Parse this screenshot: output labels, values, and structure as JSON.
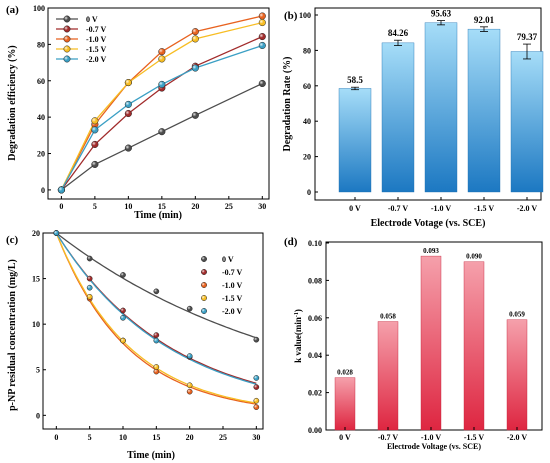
{
  "chart_data": [
    {
      "type": "line",
      "panel_label": "(a)",
      "xlabel": "Time (min)",
      "ylabel": "Degradation efficiency (%)",
      "x": [
        0,
        5,
        10,
        15,
        20,
        30
      ],
      "xticks": [
        0,
        5,
        10,
        15,
        20,
        25,
        30
      ],
      "yticks": [
        0,
        20,
        40,
        60,
        80,
        100
      ],
      "xlim": [
        -2,
        31
      ],
      "ylim": [
        -5,
        100
      ],
      "legend_position": "top-left",
      "series": [
        {
          "name": "0 V",
          "color": "#4d4d4d",
          "values": [
            0,
            14,
            23,
            32,
            41,
            58.5
          ]
        },
        {
          "name": "-0.7 V",
          "color": "#a12b2b",
          "values": [
            0,
            25,
            42,
            56,
            68,
            84.3
          ]
        },
        {
          "name": "-1.0 V",
          "color": "#e8621f",
          "values": [
            0,
            36,
            59,
            76,
            87,
            95.6
          ]
        },
        {
          "name": "-1.5 V",
          "color": "#f7bd23",
          "values": [
            0,
            38,
            59,
            72,
            83,
            92.0
          ]
        },
        {
          "name": "-2.0 V",
          "color": "#3a9fc4",
          "values": [
            0,
            33,
            47,
            58,
            67,
            79.4
          ]
        }
      ]
    },
    {
      "type": "bar",
      "panel_label": "(b)",
      "xlabel": "Electrode Votage (vs. SCE)",
      "ylabel": "Degradation Rate (%)",
      "categories": [
        "0 V",
        "-0.7 V",
        "-1.0 V",
        "-1.5 V",
        "-2.0 V"
      ],
      "values": [
        58.5,
        84.26,
        95.63,
        92.01,
        79.37
      ],
      "labels": [
        "58.5",
        "84.26",
        "95.63",
        "92.01",
        "79.37"
      ],
      "errors": [
        0.7,
        1.5,
        1.2,
        1.3,
        4.2
      ],
      "yticks": [
        0,
        20,
        40,
        60,
        80,
        100
      ],
      "ylim": [
        0,
        100
      ],
      "bar_colors": [
        "#9fd9f6",
        "#1f7fc6"
      ]
    },
    {
      "type": "scatter",
      "panel_label": "(c)",
      "xlabel": "Time (min)",
      "ylabel": "p-NP residual concentration (mg/L)",
      "x": [
        0,
        5,
        10,
        15,
        20,
        30
      ],
      "xticks": [
        0,
        5,
        10,
        15,
        20,
        25,
        30
      ],
      "yticks": [
        0,
        5,
        10,
        15,
        20
      ],
      "xlim": [
        -2,
        31
      ],
      "ylim": [
        -1.5,
        20
      ],
      "legend_position": "top-right",
      "series": [
        {
          "name": "0 V",
          "color": "#4d4d4d",
          "values": [
            20,
            17.2,
            15.4,
            13.6,
            11.7,
            8.3
          ],
          "fit_k": 0.0285
        },
        {
          "name": "-0.7 V",
          "color": "#a12b2b",
          "values": [
            20,
            15.0,
            11.5,
            8.8,
            6.4,
            3.1
          ],
          "fit_k": 0.058
        },
        {
          "name": "-1.0 V",
          "color": "#e8621f",
          "values": [
            20,
            12.8,
            8.2,
            4.8,
            2.6,
            0.9
          ],
          "fit_k": 0.093
        },
        {
          "name": "-1.5 V",
          "color": "#f7bd23",
          "values": [
            20,
            13.0,
            8.2,
            5.3,
            3.3,
            1.6
          ],
          "fit_k": 0.09
        },
        {
          "name": "-2.0 V",
          "color": "#3a9fc4",
          "values": [
            20,
            14.0,
            10.7,
            8.2,
            6.5,
            4.1
          ],
          "fit_k": 0.059
        }
      ]
    },
    {
      "type": "bar",
      "panel_label": "(d)",
      "xlabel": "Electrode Voltage (vs. SCE)",
      "ylabel": "k value(min",
      "ylabel_superscript": "-1",
      "ylabel_suffix": ")",
      "categories": [
        "0 V",
        "-0.7 V",
        "-1.0 V",
        "-1.5 V",
        "-2.0 V"
      ],
      "values": [
        0.028,
        0.058,
        0.093,
        0.09,
        0.059
      ],
      "labels": [
        "0.028",
        "0.058",
        "0.093",
        "0.090",
        "0.059"
      ],
      "yticks": [
        0.0,
        0.02,
        0.04,
        0.06,
        0.08,
        0.1
      ],
      "ytick_labels": [
        "0.00",
        "0.02",
        "0.04",
        "0.06",
        "0.08",
        "0.10"
      ],
      "ylim": [
        0,
        0.1
      ],
      "bar_colors": [
        "#f2939f",
        "#e02a44"
      ]
    }
  ]
}
